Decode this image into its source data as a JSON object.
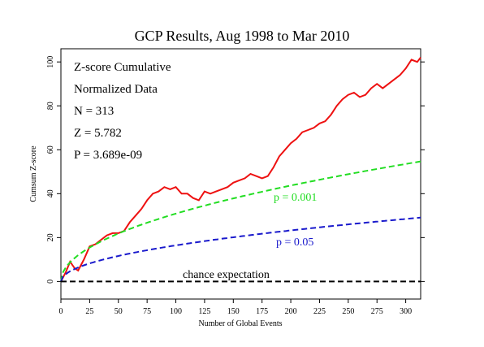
{
  "chart_data": {
    "type": "line",
    "title": "GCP Results, Aug 1998 to Mar 2010",
    "xlabel": "Number of Global Events",
    "ylabel": "Cumsum Z-score",
    "xlim": [
      0,
      313
    ],
    "ylim": [
      -8,
      106
    ],
    "xticks": [
      0,
      25,
      50,
      75,
      100,
      125,
      150,
      175,
      200,
      225,
      250,
      275,
      300
    ],
    "yticks": [
      0,
      20,
      40,
      60,
      80,
      100
    ],
    "grid": false,
    "annotations": [
      "Z-score Cumulative",
      "Normalized Data",
      "N = 313",
      "Z = 5.782",
      "P = 3.689e-09"
    ],
    "series": [
      {
        "color": "#ee1111",
        "style": "solid",
        "x": [
          0,
          4,
          8,
          12,
          15,
          20,
          25,
          30,
          35,
          40,
          45,
          50,
          55,
          60,
          65,
          70,
          75,
          80,
          85,
          90,
          95,
          100,
          105,
          110,
          115,
          120,
          125,
          130,
          135,
          140,
          145,
          150,
          155,
          160,
          165,
          170,
          175,
          180,
          185,
          190,
          195,
          200,
          205,
          210,
          215,
          220,
          225,
          230,
          235,
          240,
          245,
          250,
          255,
          260,
          265,
          270,
          275,
          280,
          285,
          290,
          295,
          300,
          305,
          310,
          313
        ],
        "y": [
          0,
          4,
          9,
          6,
          5,
          10,
          16,
          17,
          19,
          21,
          22,
          22,
          23,
          27,
          30,
          33,
          37,
          40,
          41,
          43,
          42,
          43,
          40,
          40,
          38,
          37,
          41,
          40,
          41,
          42,
          43,
          45,
          46,
          47,
          49,
          48,
          47,
          48,
          52,
          57,
          60,
          63,
          65,
          68,
          69,
          70,
          72,
          73,
          76,
          80,
          83,
          85,
          86,
          84,
          85,
          88,
          90,
          88,
          90,
          92,
          94,
          97,
          101,
          100,
          102
        ]
      },
      {
        "name": "p = 0.001",
        "color": "#22dd22",
        "style": "dashed",
        "formula": "3.09*sqrt(n)"
      },
      {
        "name": "p = 0.05",
        "color": "#1a1acc",
        "style": "dashed",
        "formula": "1.645*sqrt(n)"
      },
      {
        "name": "chance expectation",
        "color": "#000000",
        "style": "dashed",
        "formula": "0"
      }
    ]
  }
}
